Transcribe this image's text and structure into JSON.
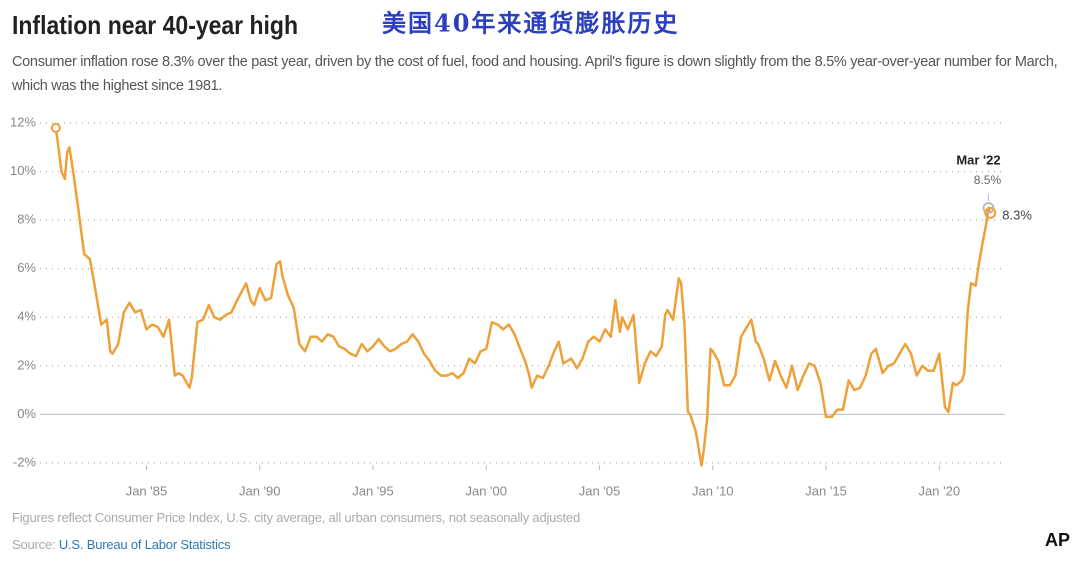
{
  "chart_data": {
    "type": "line",
    "title": "Inflation near 40-year high",
    "overlay_title": "美国40年来通货膨胀历史",
    "subtitle": "Consumer inflation rose 8.3% over the past year, driven by the cost of fuel, food and housing. April's figure is down slightly from the 8.5% year-over-year number for March, which was the highest since 1981.",
    "note": "Figures reflect Consumer Price Index, U.S. city average, all urban consumers, not seasonally adjusted",
    "source_label": "Source:",
    "source": "U.S. Bureau of Labor Statistics",
    "logo": "AP",
    "xlim": [
      1980.3,
      2022.9
    ],
    "xticks": [
      {
        "value": 1985,
        "label": "Jan '85"
      },
      {
        "value": 1990,
        "label": "Jan '90"
      },
      {
        "value": 1995,
        "label": "Jan '95"
      },
      {
        "value": 2000,
        "label": "Jan '00"
      },
      {
        "value": 2005,
        "label": "Jan '05"
      },
      {
        "value": 2010,
        "label": "Jan '10"
      },
      {
        "value": 2015,
        "label": "Jan '15"
      },
      {
        "value": 2020,
        "label": "Jan '20"
      }
    ],
    "ylim": [
      -2,
      12
    ],
    "yticks": [
      {
        "value": -2,
        "label": "-2%"
      },
      {
        "value": 0,
        "label": "0%"
      },
      {
        "value": 2,
        "label": "2%"
      },
      {
        "value": 4,
        "label": "4%"
      },
      {
        "value": 6,
        "label": "6%"
      },
      {
        "value": 8,
        "label": "8%"
      },
      {
        "value": 10,
        "label": "10%"
      },
      {
        "value": 12,
        "label": "12%"
      }
    ],
    "grid": true,
    "x": [
      1981.0,
      1981.25,
      1981.4,
      1981.5,
      1981.6,
      1981.75,
      1982.0,
      1982.25,
      1982.5,
      1982.6,
      1982.75,
      1983.0,
      1983.25,
      1983.4,
      1983.5,
      1983.75,
      1984.0,
      1984.25,
      1984.5,
      1984.75,
      1985.0,
      1985.25,
      1985.5,
      1985.75,
      1986.0,
      1986.25,
      1986.4,
      1986.6,
      1986.9,
      1987.0,
      1987.25,
      1987.5,
      1987.75,
      1988.0,
      1988.25,
      1988.5,
      1988.75,
      1989.0,
      1989.4,
      1989.6,
      1989.75,
      1990.0,
      1990.25,
      1990.5,
      1990.75,
      1990.9,
      1991.0,
      1991.25,
      1991.5,
      1991.75,
      1992.0,
      1992.25,
      1992.5,
      1992.75,
      1993.0,
      1993.25,
      1993.5,
      1993.75,
      1994.0,
      1994.25,
      1994.5,
      1994.75,
      1995.0,
      1995.25,
      1995.5,
      1995.75,
      1996.0,
      1996.25,
      1996.5,
      1996.75,
      1997.0,
      1997.25,
      1997.5,
      1997.75,
      1998.0,
      1998.25,
      1998.5,
      1998.75,
      1999.0,
      1999.25,
      1999.5,
      1999.75,
      2000.0,
      2000.25,
      2000.5,
      2000.75,
      2001.0,
      2001.25,
      2001.5,
      2001.75,
      2001.9,
      2002.0,
      2002.25,
      2002.5,
      2002.75,
      2003.0,
      2003.2,
      2003.4,
      2003.75,
      2004.0,
      2004.25,
      2004.5,
      2004.75,
      2005.0,
      2005.25,
      2005.5,
      2005.7,
      2005.9,
      2006.0,
      2006.25,
      2006.5,
      2006.75,
      2007.0,
      2007.25,
      2007.5,
      2007.75,
      2007.9,
      2008.0,
      2008.25,
      2008.5,
      2008.6,
      2008.75,
      2008.9,
      2009.0,
      2009.25,
      2009.5,
      2009.6,
      2009.75,
      2009.9,
      2010.0,
      2010.25,
      2010.5,
      2010.75,
      2011.0,
      2011.25,
      2011.5,
      2011.7,
      2011.9,
      2012.0,
      2012.25,
      2012.5,
      2012.75,
      2013.0,
      2013.25,
      2013.5,
      2013.75,
      2014.0,
      2014.25,
      2014.5,
      2014.75,
      2015.0,
      2015.25,
      2015.5,
      2015.75,
      2016.0,
      2016.25,
      2016.5,
      2016.75,
      2017.0,
      2017.2,
      2017.5,
      2017.75,
      2018.0,
      2018.5,
      2018.75,
      2019.0,
      2019.25,
      2019.5,
      2019.75,
      2020.0,
      2020.25,
      2020.4,
      2020.6,
      2020.75,
      2021.0,
      2021.1,
      2021.25,
      2021.4,
      2021.6,
      2021.75,
      2021.9,
      2022.0,
      2022.08,
      2022.17,
      2022.25
    ],
    "series": [
      {
        "color": "#eea13a",
        "values": [
          11.8,
          10.0,
          9.7,
          10.8,
          11.0,
          10.1,
          8.4,
          6.6,
          6.4,
          5.9,
          5.1,
          3.7,
          3.9,
          2.6,
          2.5,
          2.9,
          4.2,
          4.6,
          4.2,
          4.3,
          3.5,
          3.7,
          3.6,
          3.2,
          3.9,
          1.6,
          1.7,
          1.6,
          1.1,
          1.5,
          3.8,
          3.9,
          4.5,
          4.0,
          3.9,
          4.1,
          4.2,
          4.7,
          5.4,
          4.7,
          4.5,
          5.2,
          4.7,
          4.8,
          6.2,
          6.3,
          5.7,
          4.9,
          4.4,
          2.9,
          2.6,
          3.2,
          3.2,
          3.0,
          3.3,
          3.2,
          2.8,
          2.7,
          2.5,
          2.4,
          2.9,
          2.6,
          2.8,
          3.1,
          2.8,
          2.6,
          2.7,
          2.9,
          3.0,
          3.3,
          3.0,
          2.5,
          2.2,
          1.8,
          1.6,
          1.6,
          1.7,
          1.5,
          1.7,
          2.3,
          2.1,
          2.6,
          2.7,
          3.8,
          3.7,
          3.5,
          3.7,
          3.3,
          2.7,
          2.1,
          1.6,
          1.1,
          1.6,
          1.5,
          2.0,
          2.6,
          3.0,
          2.1,
          2.3,
          1.9,
          2.3,
          3.0,
          3.2,
          3.0,
          3.5,
          3.2,
          4.7,
          3.4,
          4.0,
          3.5,
          4.1,
          1.3,
          2.1,
          2.6,
          2.4,
          2.8,
          4.1,
          4.3,
          3.9,
          5.6,
          5.4,
          3.7,
          0.1,
          0.0,
          -0.7,
          -2.1,
          -1.5,
          -0.2,
          2.7,
          2.6,
          2.2,
          1.2,
          1.2,
          1.6,
          3.2,
          3.6,
          3.9,
          3.0,
          2.9,
          2.3,
          1.4,
          2.2,
          1.6,
          1.1,
          2.0,
          1.0,
          1.6,
          2.1,
          2.0,
          1.3,
          -0.1,
          -0.1,
          0.2,
          0.2,
          1.4,
          1.0,
          1.1,
          1.6,
          2.5,
          2.7,
          1.7,
          2.0,
          2.1,
          2.9,
          2.5,
          1.6,
          2.0,
          1.8,
          1.8,
          2.5,
          0.3,
          0.1,
          1.3,
          1.2,
          1.4,
          1.7,
          4.2,
          5.4,
          5.3,
          6.2,
          7.0,
          7.5,
          7.9,
          8.5,
          8.3
        ]
      }
    ],
    "highlights": [
      {
        "label": "Mar '22",
        "x": 2022.17,
        "value": 8.5,
        "value_label": "8.5%",
        "color": "#bbbbbb"
      },
      {
        "x": 2022.25,
        "value": 8.3,
        "value_label": "8.3%",
        "color": "#eea13a"
      }
    ]
  }
}
